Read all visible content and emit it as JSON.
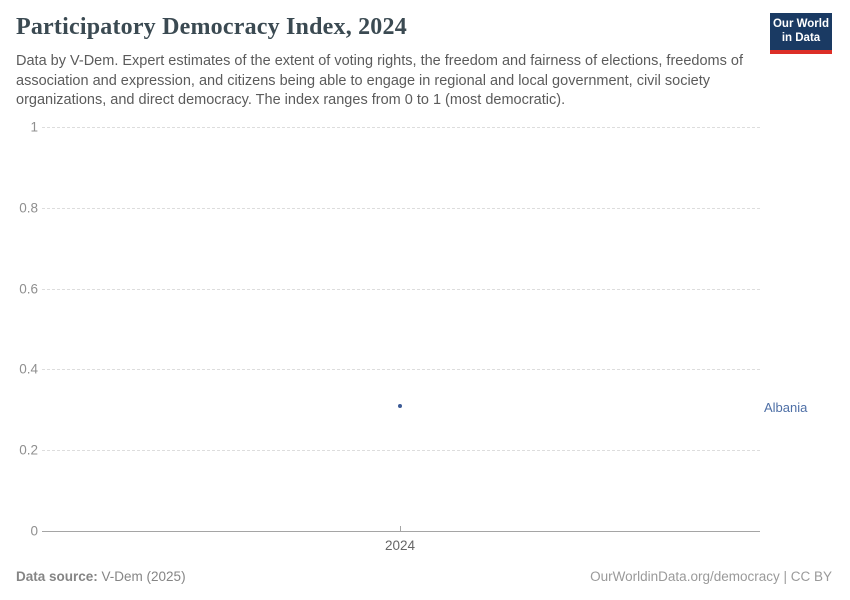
{
  "header": {
    "title": "Participatory Democracy Index, 2024",
    "subtitle": "Data by V-Dem. Expert estimates of the extent of voting rights, the freedom and fairness of elections, freedoms of association and expression, and citizens being able to engage in regional and local government, civil society organizations, and direct democracy. The index ranges from 0 to 1 (most democratic)."
  },
  "logo": {
    "line1": "Our World",
    "line2": "in Data",
    "bg_color": "#1a3a63",
    "accent_color": "#dc2e27"
  },
  "chart_data": {
    "type": "scatter",
    "title": "Participatory Democracy Index, 2024",
    "xlabel": "",
    "ylabel": "",
    "ylim": [
      0,
      1
    ],
    "y_gridlines": [
      1,
      0.8,
      0.6,
      0.4,
      0.2,
      0
    ],
    "x_ticks": [
      "2024"
    ],
    "grid": "horizontal-dashed",
    "legend_position": "right-of-point",
    "series": [
      {
        "name": "Albania",
        "x": [
          2024
        ],
        "values": [
          0.31
        ],
        "color": "#3d5b96",
        "label_color": "#4e6fa6"
      }
    ]
  },
  "footer": {
    "source_label": "Data source:",
    "source_value": " V-Dem (2025)",
    "credit": "OurWorldinData.org/democracy | CC BY"
  }
}
